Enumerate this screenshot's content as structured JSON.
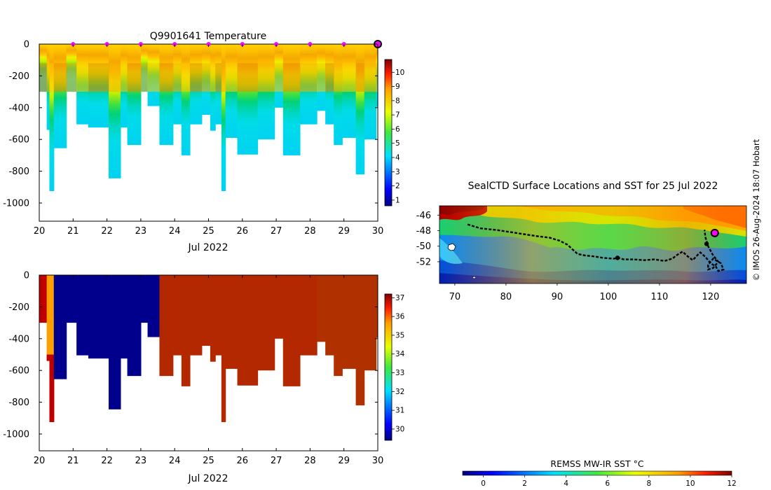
{
  "temperature_panel": {
    "title": "Q9901641  Temperature",
    "x_ticks": [
      "20",
      "21",
      "22",
      "23",
      "24",
      "25",
      "26",
      "27",
      "28",
      "29",
      "30"
    ],
    "x_month_label": "Jul 2022",
    "y_ticks": [
      "0",
      "-200",
      "-400",
      "-600",
      "-800",
      "-1000"
    ],
    "colorbar_ticks": [
      "1",
      "2",
      "3",
      "4",
      "5",
      "6",
      "7",
      "8",
      "9",
      "10"
    ]
  },
  "salinity_panel": {
    "x_ticks": [
      "20",
      "21",
      "22",
      "23",
      "24",
      "25",
      "26",
      "27",
      "28",
      "29",
      "30"
    ],
    "x_month_label": "Jul 2022",
    "y_ticks": [
      "0",
      "-200",
      "-400",
      "-600",
      "-800",
      "-1000"
    ],
    "colorbar_ticks": [
      "30",
      "31",
      "32",
      "33",
      "34",
      "35",
      "36",
      "37"
    ]
  },
  "map_panel": {
    "title": "SealCTD Surface Locations and SST for 25 Jul 2022",
    "x_ticks": [
      "70",
      "80",
      "90",
      "100",
      "110",
      "120"
    ],
    "y_ticks": [
      "-46",
      "-48",
      "-50",
      "-52"
    ],
    "sst_colorbar_title": "REMSS MW-IR SST °C",
    "sst_colorbar_ticks": [
      "0",
      "2",
      "4",
      "6",
      "8",
      "10",
      "12"
    ]
  },
  "credit": "© IMOS 26-Aug-2024 18:07 Hobart",
  "colors": {
    "profile_marker": "#ff00ff",
    "track": "#000000",
    "jet_low": "#00007f",
    "jet_high": "#7f0000"
  },
  "chart_data": [
    {
      "type": "heatmap",
      "name": "temperature_section",
      "title": "Q9901641  Temperature",
      "xlabel": "Jul 2022",
      "ylabel": "",
      "xlim": [
        20,
        30
      ],
      "ylim": [
        -1100,
        0
      ],
      "colorbar_range": [
        0.6,
        10.9
      ],
      "profile_marker_days": [
        21,
        22,
        23,
        24,
        25,
        26,
        27,
        28,
        29,
        30
      ],
      "profiles": [
        {
          "start": 20.0,
          "end": 20.22,
          "depth": 300
        },
        {
          "start": 20.22,
          "end": 20.3,
          "depth": 540
        },
        {
          "start": 20.3,
          "end": 20.43,
          "depth": 925
        },
        {
          "start": 20.43,
          "end": 20.8,
          "depth": 655
        },
        {
          "start": 20.8,
          "end": 21.1,
          "depth": 300
        },
        {
          "start": 21.1,
          "end": 21.45,
          "depth": 505
        },
        {
          "start": 21.45,
          "end": 22.05,
          "depth": 525
        },
        {
          "start": 22.05,
          "end": 22.4,
          "depth": 845
        },
        {
          "start": 22.4,
          "end": 22.6,
          "depth": 525
        },
        {
          "start": 22.6,
          "end": 23.0,
          "depth": 635
        },
        {
          "start": 23.0,
          "end": 23.2,
          "depth": 300
        },
        {
          "start": 23.2,
          "end": 23.55,
          "depth": 390
        },
        {
          "start": 23.55,
          "end": 23.95,
          "depth": 635
        },
        {
          "start": 23.95,
          "end": 24.2,
          "depth": 505
        },
        {
          "start": 24.2,
          "end": 24.45,
          "depth": 700
        },
        {
          "start": 24.45,
          "end": 24.8,
          "depth": 505
        },
        {
          "start": 24.8,
          "end": 25.05,
          "depth": 445
        },
        {
          "start": 25.05,
          "end": 25.2,
          "depth": 545
        },
        {
          "start": 25.2,
          "end": 25.38,
          "depth": 505
        },
        {
          "start": 25.38,
          "end": 25.5,
          "depth": 925
        },
        {
          "start": 25.5,
          "end": 25.85,
          "depth": 590
        },
        {
          "start": 25.85,
          "end": 26.45,
          "depth": 695
        },
        {
          "start": 26.45,
          "end": 26.95,
          "depth": 600
        },
        {
          "start": 26.95,
          "end": 27.2,
          "depth": 400
        },
        {
          "start": 27.2,
          "end": 27.7,
          "depth": 700
        },
        {
          "start": 27.7,
          "end": 28.2,
          "depth": 505
        },
        {
          "start": 28.2,
          "end": 28.45,
          "depth": 420
        },
        {
          "start": 28.45,
          "end": 28.7,
          "depth": 505
        },
        {
          "start": 28.7,
          "end": 28.95,
          "depth": 635
        },
        {
          "start": 28.95,
          "end": 29.35,
          "depth": 590
        },
        {
          "start": 29.35,
          "end": 29.6,
          "depth": 820
        },
        {
          "start": 29.6,
          "end": 29.95,
          "depth": 600
        },
        {
          "start": 29.95,
          "end": 30.1,
          "depth": 395
        }
      ]
    },
    {
      "type": "heatmap",
      "name": "salinity_section",
      "xlabel": "Jul 2022",
      "ylabel": "",
      "xlim": [
        20,
        30
      ],
      "ylim": [
        -1100,
        0
      ],
      "colorbar_range": [
        29.4,
        37.2
      ]
    },
    {
      "type": "scatter",
      "name": "seal_track_map",
      "title": "SealCTD Surface Locations and SST for 25 Jul 2022",
      "xlim": [
        67,
        127
      ],
      "ylim": [
        -54.8,
        -44.8
      ],
      "colorbar_title": "REMSS MW-IR SST °C",
      "colorbar_range": [
        -1,
        12
      ],
      "track_lon": [
        72.5,
        75,
        78,
        81,
        84,
        86,
        88.5,
        90.5,
        92,
        93,
        94,
        95.5,
        97,
        99,
        101,
        102,
        103,
        105,
        107,
        109,
        111,
        112.5,
        113.5,
        114.5,
        115.5,
        116.5,
        117.5,
        118,
        119,
        120,
        121,
        121.5,
        122.5,
        122,
        120.5,
        119.5,
        119.5,
        120.5,
        121.5,
        120.5,
        119.5,
        119,
        118.8
      ],
      "track_lat": [
        -47.2,
        -47.7,
        -47.9,
        -48.2,
        -48.5,
        -48.7,
        -48.9,
        -49.3,
        -49.8,
        -50.4,
        -51.0,
        -51.2,
        -51.3,
        -51.5,
        -51.6,
        -51.5,
        -51.7,
        -51.7,
        -51.8,
        -51.7,
        -51.9,
        -51.6,
        -51.1,
        -50.7,
        -51.3,
        -51.8,
        -51.1,
        -50.8,
        -51.4,
        -52.2,
        -52.6,
        -53.2,
        -53.0,
        -52.2,
        -51.6,
        -52.4,
        -53.0,
        -52.8,
        -52.0,
        -51.2,
        -50.0,
        -48.9,
        -47.9
      ],
      "current_position": {
        "lon": 120.8,
        "lat": -48.3
      },
      "markers": [
        {
          "lon": 101.8,
          "lat": -51.5
        },
        {
          "lon": 119.2,
          "lat": -49.7
        }
      ]
    }
  ]
}
